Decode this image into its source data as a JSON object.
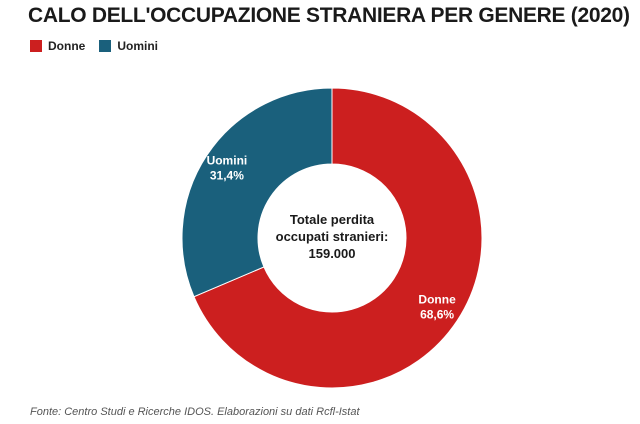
{
  "chart_data": {
    "type": "pie",
    "title": "CALO DELL'OCCUPAZIONE STRANIERA PER GENERE (2020)",
    "slices": [
      {
        "label": "Donne",
        "value": 68.6,
        "value_label": "68,6%",
        "color": "#cc1f1f"
      },
      {
        "label": "Uomini",
        "value": 31.4,
        "value_label": "31,4%",
        "color": "#1a607c"
      }
    ],
    "center_text": [
      "Totale perdita",
      "occupati stranieri:",
      "159.000"
    ],
    "legend_position": "top-left",
    "source": "Fonte: Centro Studi e Ricerche IDOS. Elaborazioni su dati Rcfl-Istat"
  }
}
